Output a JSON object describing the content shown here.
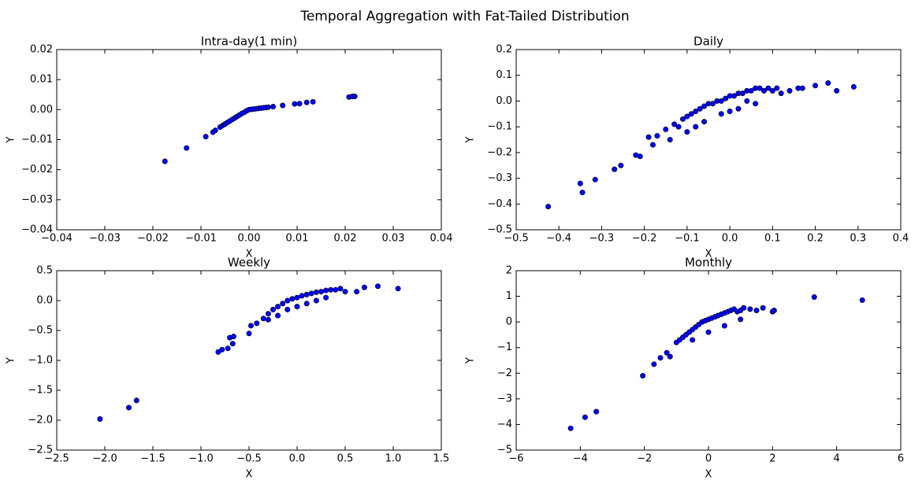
{
  "title": "Temporal Aggregation with Fat-Tailed Distribution",
  "chart_data": [
    {
      "type": "scatter",
      "title": "Intra-day(1 min)",
      "x_label": "X",
      "y_label": "Y",
      "color": "#0000ff",
      "x": [
        -0.0175,
        -0.013,
        -0.009,
        -0.0075,
        -0.007,
        -0.006,
        -0.0055,
        -0.005,
        -0.0045,
        -0.004,
        -0.0035,
        -0.003,
        -0.0025,
        -0.002,
        -0.0015,
        -0.001,
        -0.0005,
        0,
        0.0005,
        0.001,
        0.0015,
        0.002,
        0.0025,
        0.003,
        0.0035,
        0.004,
        0.005,
        0.007,
        0.0095,
        0.0105,
        0.012,
        0.0133,
        0.0208,
        0.0215,
        0.022
      ],
      "y": [
        -0.0172,
        -0.0128,
        -0.009,
        -0.0075,
        -0.0069,
        -0.0058,
        -0.0053,
        -0.0048,
        -0.0043,
        -0.0038,
        -0.0033,
        -0.0028,
        -0.0023,
        -0.0018,
        -0.0013,
        -0.0009,
        -0.0004,
        0,
        0.0001,
        0.0002,
        0.0003,
        0.0004,
        0.0005,
        0.0006,
        0.0007,
        0.0008,
        0.001,
        0.0014,
        0.0019,
        0.002,
        0.0024,
        0.0026,
        0.0042,
        0.0044,
        0.0044
      ],
      "xlim": [
        -0.04,
        0.04
      ],
      "ylim": [
        -0.04,
        0.02
      ],
      "xticks": [
        {
          "value": -0.04,
          "label": "−0.04"
        },
        {
          "value": -0.03,
          "label": "−0.03"
        },
        {
          "value": -0.02,
          "label": "−0.02"
        },
        {
          "value": -0.01,
          "label": "−0.01"
        },
        {
          "value": 0,
          "label": "0.00"
        },
        0.01,
        0.02,
        0.03,
        0.04
      ],
      "yticks": [
        {
          "value": -0.04,
          "label": "−0.04"
        },
        {
          "value": -0.03,
          "label": "−0.03"
        },
        {
          "value": -0.02,
          "label": "−0.02"
        },
        {
          "value": -0.01,
          "label": "−0.01"
        },
        {
          "value": 0,
          "label": "0.00"
        },
        0.01,
        0.02
      ]
    },
    {
      "type": "scatter",
      "title": "Daily",
      "x_label": "X",
      "y_label": "Y",
      "color": "#0000ff",
      "x": [
        -0.425,
        -0.35,
        -0.345,
        -0.315,
        -0.27,
        -0.255,
        -0.22,
        -0.21,
        -0.19,
        -0.18,
        -0.17,
        -0.15,
        -0.14,
        -0.13,
        -0.12,
        -0.11,
        -0.1,
        -0.09,
        -0.08,
        -0.07,
        -0.06,
        -0.05,
        -0.04,
        -0.03,
        -0.02,
        -0.01,
        0,
        0.01,
        0.02,
        0.03,
        0.04,
        0.05,
        0.06,
        0.07,
        0.08,
        0.09,
        0.1,
        0.11,
        0.12,
        0.14,
        0.16,
        0.17,
        0.2,
        0.23,
        0.25,
        0.29,
        -0.1,
        -0.06,
        -0.02,
        0.02,
        0.06,
        -0.08,
        0.0,
        0.04
      ],
      "y": [
        -0.41,
        -0.32,
        -0.355,
        -0.305,
        -0.265,
        -0.25,
        -0.21,
        -0.215,
        -0.14,
        -0.17,
        -0.135,
        -0.11,
        -0.15,
        -0.09,
        -0.1,
        -0.07,
        -0.06,
        -0.05,
        -0.04,
        -0.03,
        -0.02,
        -0.01,
        -0.01,
        0.0,
        0.0,
        0.01,
        0.02,
        0.02,
        0.03,
        0.03,
        0.04,
        0.04,
        0.05,
        0.05,
        0.04,
        0.05,
        0.04,
        0.05,
        0.03,
        0.04,
        0.05,
        0.05,
        0.06,
        0.07,
        0.04,
        0.055,
        -0.12,
        -0.08,
        -0.05,
        -0.03,
        -0.01,
        -0.1,
        -0.04,
        0.0
      ],
      "xlim": [
        -0.5,
        0.4
      ],
      "ylim": [
        -0.5,
        0.2
      ],
      "xticks": [
        {
          "value": -0.5,
          "label": "−0.5"
        },
        {
          "value": -0.4,
          "label": "−0.4"
        },
        {
          "value": -0.3,
          "label": "−0.3"
        },
        {
          "value": -0.2,
          "label": "−0.2"
        },
        {
          "value": -0.1,
          "label": "−0.1"
        },
        {
          "value": 0,
          "label": "0.0"
        },
        0.1,
        0.2,
        0.3,
        0.4
      ],
      "yticks": [
        {
          "value": -0.5,
          "label": "−0.5"
        },
        {
          "value": -0.4,
          "label": "−0.4"
        },
        {
          "value": -0.3,
          "label": "−0.3"
        },
        {
          "value": -0.2,
          "label": "−0.2"
        },
        {
          "value": -0.1,
          "label": "−0.1"
        },
        {
          "value": 0,
          "label": "0.0"
        },
        0.1,
        0.2
      ]
    },
    {
      "type": "scatter",
      "title": "Weekly",
      "x_label": "X",
      "y_label": "Y",
      "color": "#0000ff",
      "x": [
        -2.05,
        -1.75,
        -1.67,
        -0.82,
        -0.78,
        -0.72,
        -0.7,
        -0.66,
        -0.67,
        -0.5,
        -0.48,
        -0.42,
        -0.35,
        -0.3,
        -0.25,
        -0.2,
        -0.15,
        -0.1,
        -0.05,
        0,
        0.05,
        0.1,
        0.15,
        0.2,
        0.25,
        0.3,
        0.35,
        0.4,
        0.45,
        0.5,
        -0.3,
        -0.2,
        -0.1,
        0.0,
        0.1,
        0.2,
        0.3,
        0.62,
        0.7,
        0.84,
        1.05
      ],
      "y": [
        -1.98,
        -1.79,
        -1.67,
        -0.86,
        -0.82,
        -0.8,
        -0.62,
        -0.6,
        -0.72,
        -0.55,
        -0.42,
        -0.38,
        -0.3,
        -0.22,
        -0.15,
        -0.1,
        -0.05,
        0.0,
        0.03,
        0.05,
        0.08,
        0.1,
        0.12,
        0.14,
        0.15,
        0.17,
        0.18,
        0.18,
        0.2,
        0.15,
        -0.32,
        -0.25,
        -0.15,
        -0.1,
        -0.05,
        0.0,
        0.05,
        0.15,
        0.22,
        0.24,
        0.2
      ],
      "xlim": [
        -2.5,
        1.5
      ],
      "ylim": [
        -2.5,
        0.5
      ],
      "xticks": [
        {
          "value": -2.5,
          "label": "−2.5"
        },
        {
          "value": -2,
          "label": "−2.0"
        },
        {
          "value": -1.5,
          "label": "−1.5"
        },
        {
          "value": -1,
          "label": "−1.0"
        },
        {
          "value": -0.5,
          "label": "−0.5"
        },
        {
          "value": 0,
          "label": "0.0"
        },
        0.5,
        {
          "value": 1,
          "label": "1.0"
        },
        1.5
      ],
      "yticks": [
        {
          "value": -2.5,
          "label": "−2.5"
        },
        {
          "value": -2,
          "label": "−2.0"
        },
        {
          "value": -1.5,
          "label": "−1.5"
        },
        {
          "value": -1,
          "label": "−1.0"
        },
        {
          "value": -0.5,
          "label": "−0.5"
        },
        {
          "value": 0,
          "label": "0.0"
        },
        0.5
      ]
    },
    {
      "type": "scatter",
      "title": "Monthly",
      "x_label": "X",
      "y_label": "Y",
      "color": "#0000ff",
      "x": [
        -4.3,
        -3.85,
        -3.5,
        -2.05,
        -1.7,
        -1.5,
        -1.3,
        -1.2,
        -1.0,
        -0.9,
        -0.8,
        -0.7,
        -0.6,
        -0.5,
        -0.4,
        -0.3,
        -0.2,
        -0.1,
        0,
        0.1,
        0.2,
        0.3,
        0.4,
        0.5,
        0.6,
        0.7,
        0.8,
        0.9,
        1.0,
        1.1,
        1.3,
        1.5,
        1.7,
        -0.5,
        0.0,
        0.5,
        1.0,
        2.0,
        2.05,
        3.3,
        4.8
      ],
      "y": [
        -4.15,
        -3.72,
        -3.5,
        -2.1,
        -1.65,
        -1.4,
        -1.2,
        -1.35,
        -0.8,
        -0.7,
        -0.6,
        -0.5,
        -0.4,
        -0.3,
        -0.2,
        -0.1,
        0.0,
        0.05,
        0.1,
        0.15,
        0.2,
        0.25,
        0.3,
        0.35,
        0.4,
        0.45,
        0.5,
        0.4,
        0.45,
        0.55,
        0.5,
        0.45,
        0.55,
        -0.7,
        -0.4,
        -0.15,
        0.1,
        0.4,
        0.45,
        0.97,
        0.85
      ],
      "xlim": [
        -6,
        6
      ],
      "ylim": [
        -5,
        2
      ],
      "xticks": [
        {
          "value": -6,
          "label": "−6"
        },
        {
          "value": -4,
          "label": "−4"
        },
        {
          "value": -2,
          "label": "−2"
        },
        0,
        2,
        4,
        6
      ],
      "yticks": [
        {
          "value": -5,
          "label": "−5"
        },
        {
          "value": -4,
          "label": "−4"
        },
        {
          "value": -3,
          "label": "−3"
        },
        {
          "value": -2,
          "label": "−2"
        },
        {
          "value": -1,
          "label": "−1"
        },
        0,
        1,
        2
      ]
    }
  ]
}
